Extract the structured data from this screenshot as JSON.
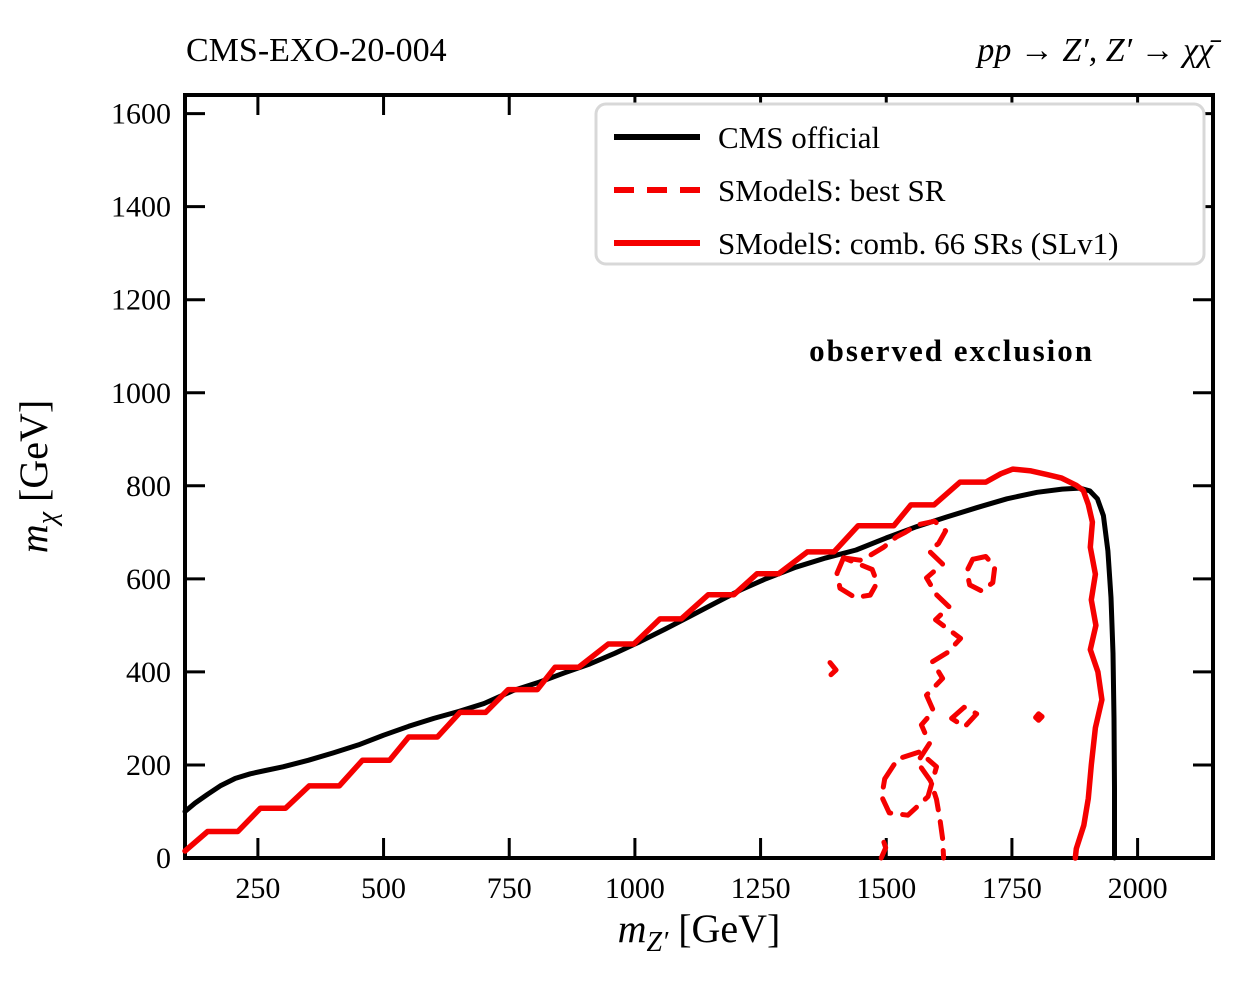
{
  "chart_data": {
    "type": "line",
    "title_left": "CMS-EXO-20-004",
    "title_right": "pp → Z′, Z′ → χχ̄",
    "xlabel": {
      "var": "m",
      "sub": "Z′",
      "unit": " [GeV]"
    },
    "ylabel": {
      "var": "m",
      "sub": "χ",
      "unit": " [GeV]"
    },
    "xlim": [
      105,
      2150
    ],
    "ylim": [
      0,
      1640
    ],
    "xticks": [
      250,
      500,
      750,
      1000,
      1250,
      1500,
      1750,
      2000
    ],
    "yticks": [
      0,
      200,
      400,
      600,
      800,
      1000,
      1200,
      1400,
      1600
    ],
    "grid": false,
    "axis_color": "#000000",
    "annotation": {
      "text": "observed exclusion",
      "x": 1630,
      "y": 1090,
      "bold": true
    },
    "legend": {
      "position": "upper right",
      "border_color": "#d8d8d8",
      "entries": [
        {
          "label": "CMS official",
          "color": "#000000",
          "dash": "solid"
        },
        {
          "label": "SModelS: best SR",
          "color": "#f50000",
          "dash": "dashed"
        },
        {
          "label": "SModelS: comb. 66 SRs (SLv1)",
          "color": "#f50000",
          "dash": "solid"
        }
      ]
    },
    "series": [
      {
        "name": "CMS official",
        "color": "#000000",
        "dash": "solid",
        "width": 5,
        "paths": [
          [
            [
              105,
              100
            ],
            [
              125,
              118
            ],
            [
              150,
              137
            ],
            [
              175,
              155
            ],
            [
              205,
              171
            ],
            [
              235,
              181
            ],
            [
              265,
              188
            ],
            [
              300,
              196
            ],
            [
              350,
              210
            ],
            [
              400,
              226
            ],
            [
              450,
              243
            ],
            [
              500,
              264
            ],
            [
              550,
              283
            ],
            [
              600,
              300
            ],
            [
              650,
              315
            ],
            [
              700,
              332
            ],
            [
              758,
              360
            ],
            [
              810,
              378
            ],
            [
              860,
              398
            ],
            [
              910,
              417
            ],
            [
              960,
              440
            ],
            [
              1010,
              465
            ],
            [
              1060,
              492
            ],
            [
              1110,
              520
            ],
            [
              1160,
              548
            ],
            [
              1210,
              576
            ],
            [
              1260,
              600
            ],
            [
              1320,
              625
            ],
            [
              1380,
              645
            ],
            [
              1440,
              662
            ],
            [
              1500,
              688
            ],
            [
              1560,
              712
            ],
            [
              1620,
              733
            ],
            [
              1680,
              753
            ],
            [
              1740,
              772
            ],
            [
              1800,
              786
            ],
            [
              1850,
              793
            ],
            [
              1885,
              795
            ],
            [
              1905,
              789
            ],
            [
              1920,
              772
            ],
            [
              1932,
              736
            ],
            [
              1941,
              660
            ],
            [
              1947,
              560
            ],
            [
              1951,
              440
            ],
            [
              1953,
              300
            ],
            [
              1954,
              150
            ],
            [
              1954,
              0
            ]
          ]
        ]
      },
      {
        "name": "SModelS: best SR",
        "color": "#f50000",
        "dash": "dashed",
        "width": 5,
        "paths": [
          [
            [
              1415,
              645
            ],
            [
              1448,
              640
            ],
            [
              1470,
              652
            ],
            [
              1495,
              668
            ],
            [
              1520,
              690
            ],
            [
              1538,
              700
            ],
            [
              1562,
              716
            ],
            [
              1596,
              724
            ],
            [
              1618,
              703
            ],
            [
              1604,
              676
            ],
            [
              1585,
              660
            ],
            [
              1612,
              632
            ],
            [
              1580,
              602
            ],
            [
              1600,
              566
            ],
            [
              1625,
              540
            ],
            [
              1598,
              512
            ],
            [
              1648,
              472
            ],
            [
              1622,
              442
            ],
            [
              1592,
              422
            ],
            [
              1612,
              386
            ],
            [
              1580,
              350
            ],
            [
              1594,
              316
            ],
            [
              1570,
              286
            ],
            [
              1586,
              246
            ],
            [
              1562,
              206
            ],
            [
              1588,
              166
            ],
            [
              1600,
              126
            ],
            [
              1607,
              82
            ],
            [
              1612,
              42
            ],
            [
              1614,
              0
            ]
          ],
          [
            [
              1415,
              645
            ],
            [
              1402,
              612
            ],
            [
              1408,
              580
            ],
            [
              1438,
              560
            ],
            [
              1468,
              565
            ],
            [
              1482,
              592
            ],
            [
              1472,
              620
            ],
            [
              1445,
              632
            ],
            [
              1415,
              645
            ]
          ],
          [
            [
              1672,
              642
            ],
            [
              1698,
              648
            ],
            [
              1716,
              626
            ],
            [
              1712,
              592
            ],
            [
              1690,
              574
            ],
            [
              1666,
              587
            ],
            [
              1660,
              616
            ],
            [
              1672,
              642
            ]
          ],
          [
            [
              1630,
              300
            ],
            [
              1655,
              324
            ],
            [
              1680,
              310
            ],
            [
              1656,
              282
            ],
            [
              1630,
              300
            ]
          ],
          [
            [
              1497,
              170
            ],
            [
              1523,
              213
            ],
            [
              1566,
              228
            ],
            [
              1600,
              196
            ],
            [
              1583,
              132
            ],
            [
              1543,
              92
            ],
            [
              1506,
              97
            ],
            [
              1491,
              132
            ],
            [
              1497,
              170
            ]
          ],
          [
            [
              1490,
              0
            ],
            [
              1499,
              22
            ],
            [
              1492,
              45
            ]
          ],
          [
            [
              1388,
              420
            ],
            [
              1400,
              404
            ],
            [
              1390,
              394
            ]
          ],
          [
            [
              1797,
              302
            ],
            [
              1803,
              310
            ],
            [
              1810,
              304
            ],
            [
              1803,
              296
            ],
            [
              1797,
              302
            ]
          ]
        ]
      },
      {
        "name": "SModelS: comb. 66 SRs (SLv1)",
        "color": "#f50000",
        "dash": "solid",
        "width": 5.5,
        "paths": [
          [
            [
              105,
              15
            ],
            [
              150,
              57
            ],
            [
              210,
              57
            ],
            [
              255,
              107
            ],
            [
              305,
              107
            ],
            [
              352,
              155
            ],
            [
              412,
              155
            ],
            [
              458,
              210
            ],
            [
              512,
              210
            ],
            [
              550,
              260
            ],
            [
              607,
              260
            ],
            [
              652,
              313
            ],
            [
              703,
              313
            ],
            [
              748,
              362
            ],
            [
              806,
              362
            ],
            [
              841,
              410
            ],
            [
              888,
              410
            ],
            [
              947,
              460
            ],
            [
              998,
              460
            ],
            [
              1050,
              514
            ],
            [
              1092,
              514
            ],
            [
              1146,
              566
            ],
            [
              1197,
              566
            ],
            [
              1243,
              611
            ],
            [
              1286,
              611
            ],
            [
              1343,
              658
            ],
            [
              1396,
              658
            ],
            [
              1444,
              714
            ],
            [
              1515,
              714
            ],
            [
              1549,
              759
            ],
            [
              1595,
              759
            ],
            [
              1647,
              808
            ],
            [
              1698,
              808
            ],
            [
              1728,
              826
            ],
            [
              1752,
              836
            ],
            [
              1788,
              832
            ],
            [
              1820,
              824
            ],
            [
              1848,
              817
            ],
            [
              1878,
              801
            ],
            [
              1892,
              790
            ],
            [
              1902,
              760
            ],
            [
              1910,
              722
            ],
            [
              1906,
              668
            ],
            [
              1916,
              610
            ],
            [
              1908,
              555
            ],
            [
              1917,
              500
            ],
            [
              1906,
              448
            ],
            [
              1921,
              400
            ],
            [
              1929,
              340
            ],
            [
              1916,
              280
            ],
            [
              1908,
              200
            ],
            [
              1902,
              128
            ],
            [
              1893,
              70
            ],
            [
              1878,
              20
            ],
            [
              1876,
              0
            ]
          ]
        ]
      }
    ]
  }
}
